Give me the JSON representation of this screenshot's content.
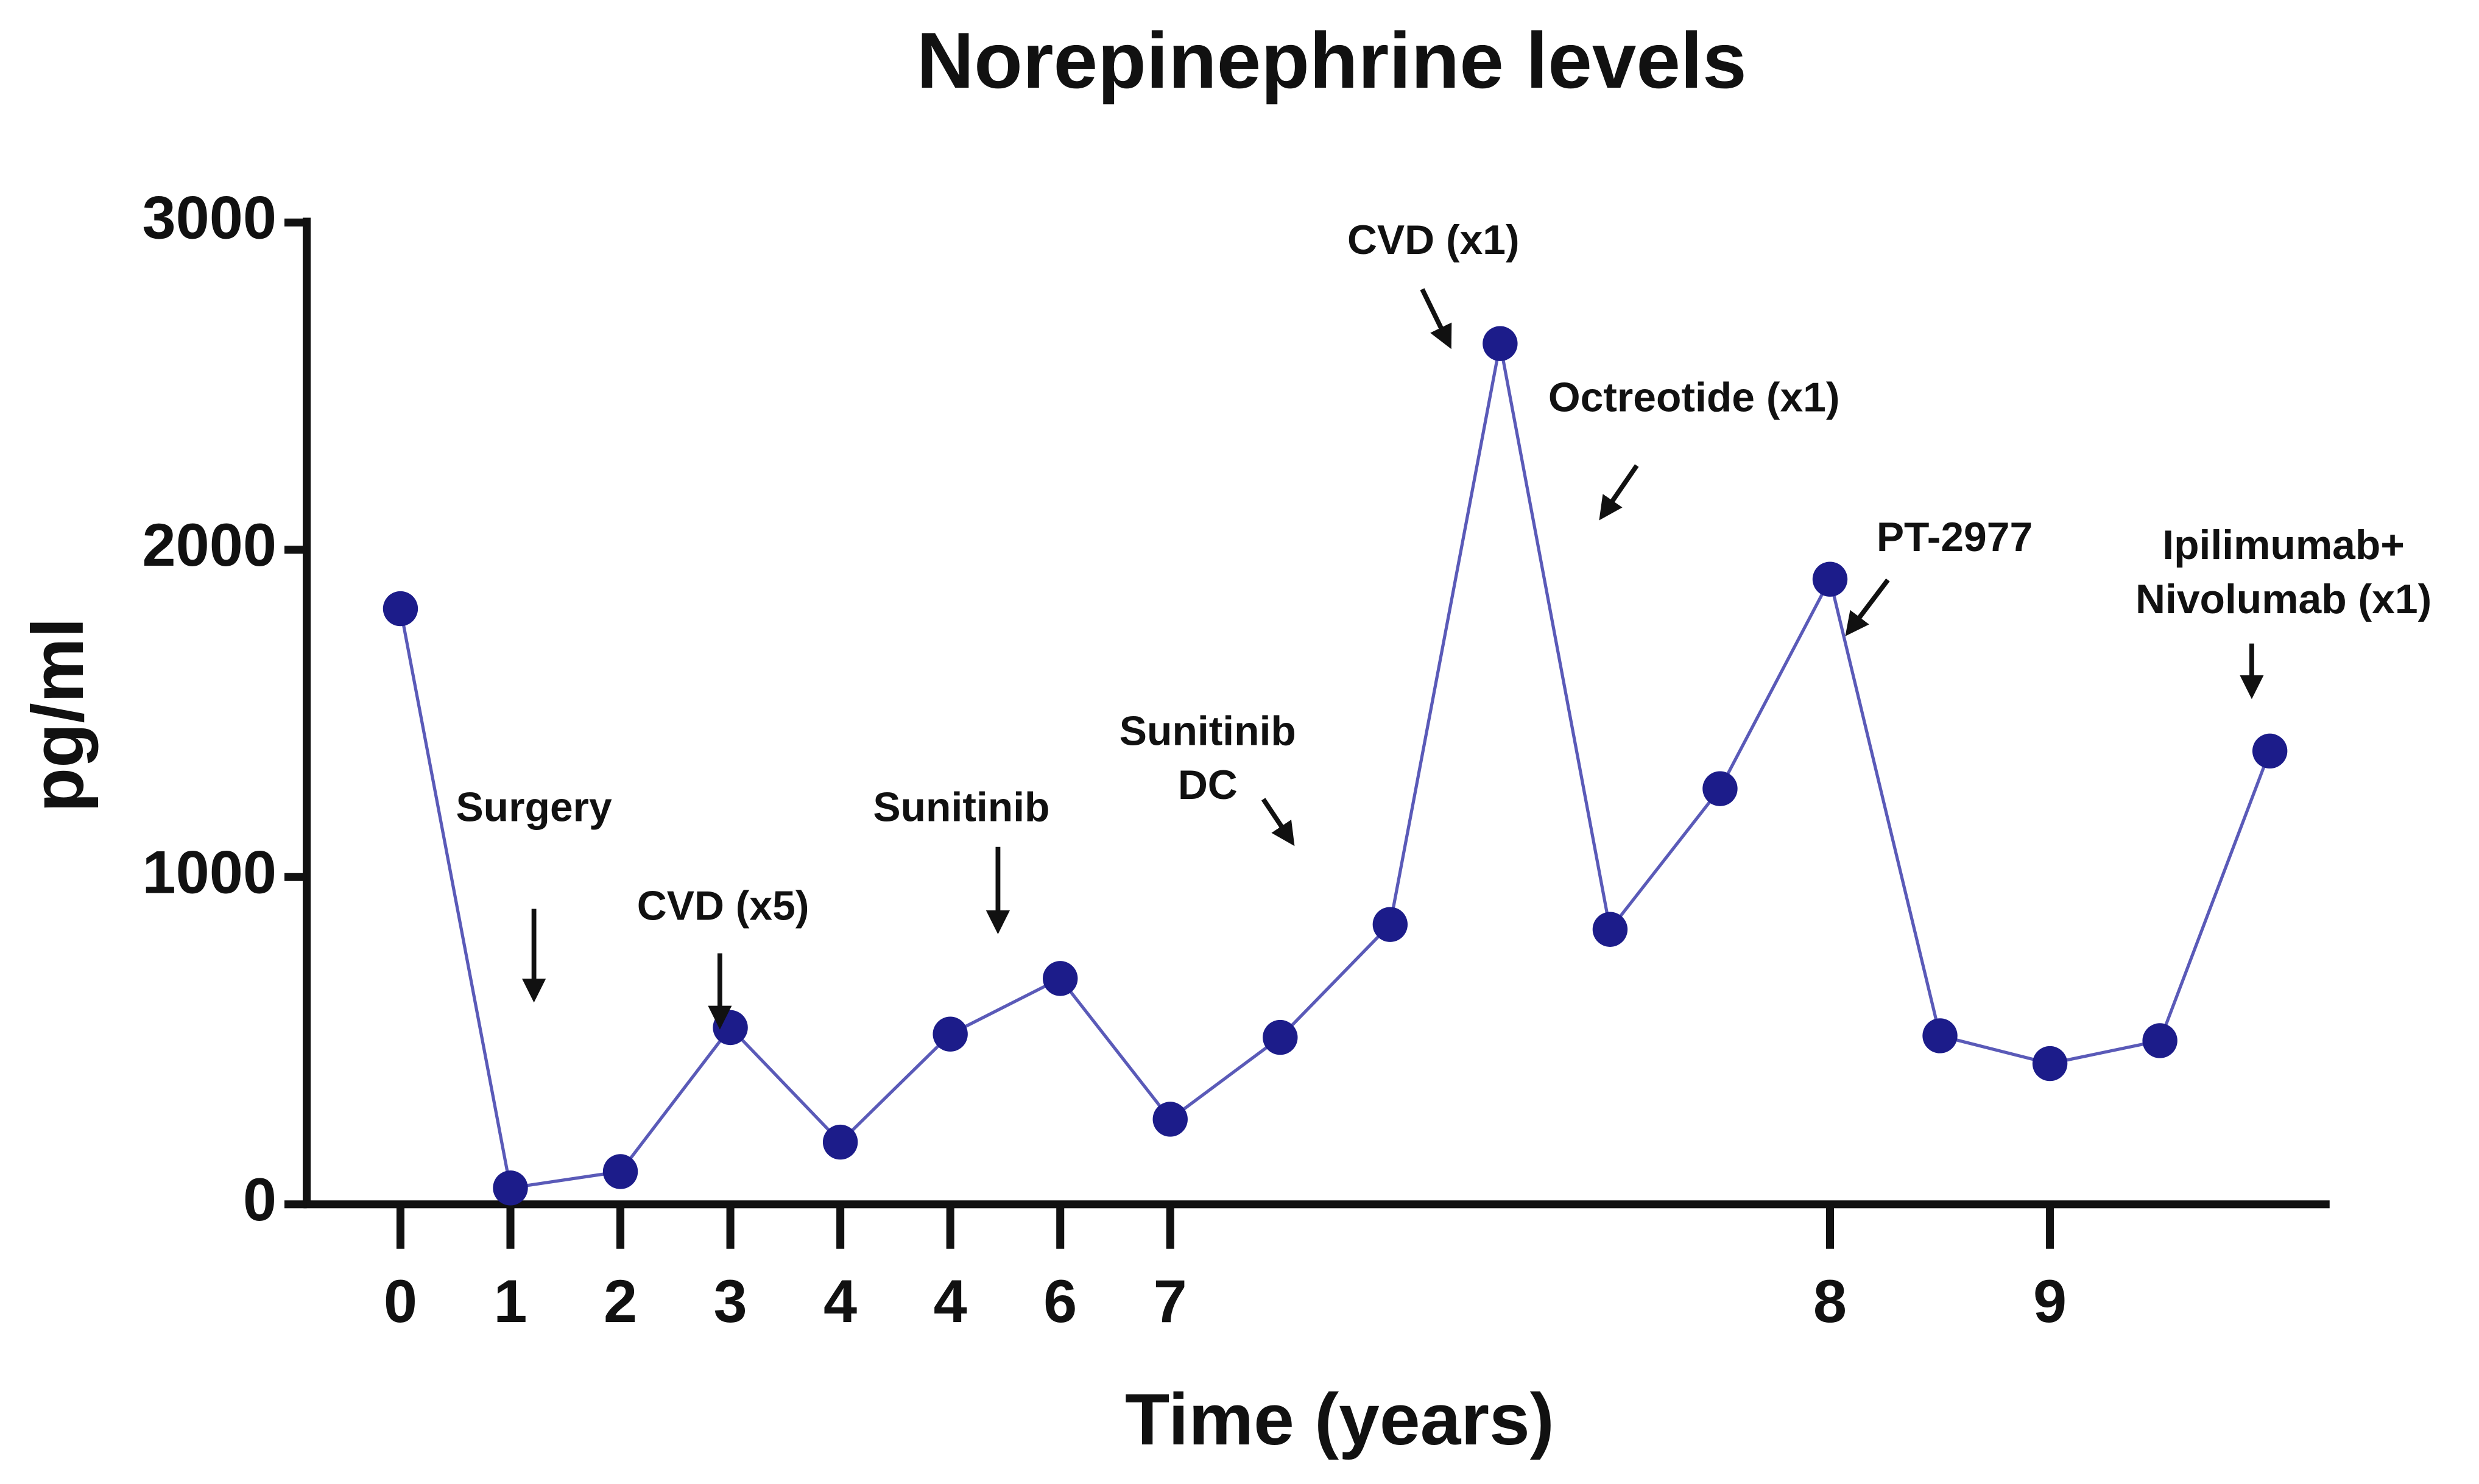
{
  "chart_data": {
    "type": "line",
    "title": "Norepinephrine levels",
    "x_label": "Time (years)",
    "y_label": "pg/ml",
    "categories": [
      "0",
      "1",
      "2",
      "3",
      "4",
      "4",
      "6",
      "7",
      null,
      null,
      null,
      null,
      null,
      "8",
      null,
      "9",
      null,
      null
    ],
    "series": [
      {
        "name": "Norepinephrine",
        "color": "#5a5ab8",
        "marker_color": "#1c1c8a",
        "values": [
          1820,
          50,
          100,
          540,
          190,
          520,
          690,
          260,
          510,
          855,
          2630,
          840,
          1270,
          1910,
          515,
          430,
          500,
          1385
        ]
      }
    ],
    "ylim": [
      0,
      3000
    ],
    "yticks": [
      0,
      1000,
      2000,
      3000
    ],
    "annotations": [
      {
        "lines": [
          "Surgery"
        ]
      },
      {
        "lines": [
          "CVD (x5)"
        ]
      },
      {
        "lines": [
          "Sunitinib"
        ]
      },
      {
        "lines": [
          "Sunitinib",
          "DC"
        ]
      },
      {
        "lines": [
          "CVD (x1)"
        ]
      },
      {
        "lines": [
          "Octreotide (x1)"
        ]
      },
      {
        "lines": [
          "PT-2977"
        ]
      },
      {
        "lines": [
          "Ipilimumab+",
          "Nivolumab (x1)"
        ]
      }
    ]
  }
}
